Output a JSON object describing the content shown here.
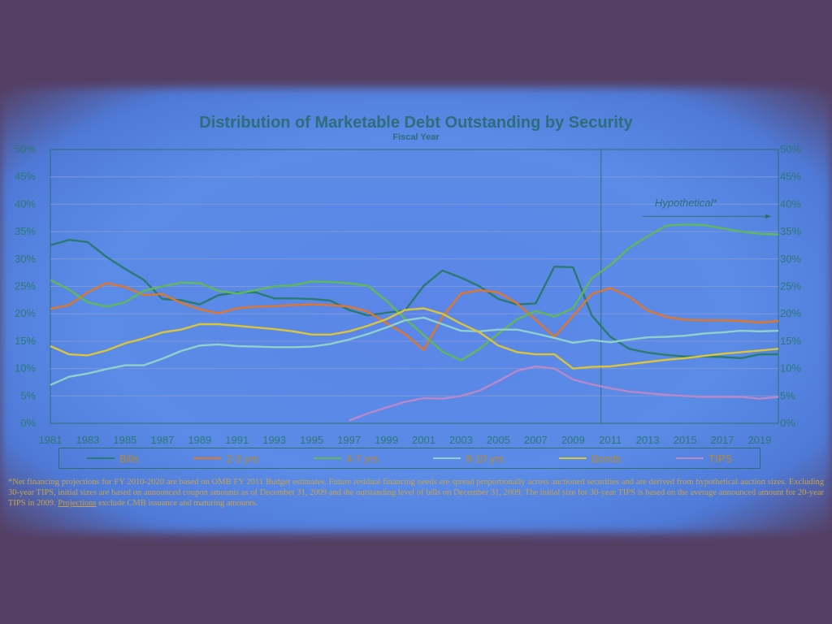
{
  "chart_data": {
    "type": "line",
    "title": "Distribution of Marketable Debt Outstanding by Security",
    "subtitle": "Fiscal Year",
    "annotation": "Hypothetical*",
    "ylim": [
      0,
      50
    ],
    "yticks": [
      "0%",
      "5%",
      "10%",
      "15%",
      "20%",
      "25%",
      "30%",
      "35%",
      "40%",
      "45%",
      "50%"
    ],
    "xlim": [
      1981,
      2020
    ],
    "xticks": [
      "1981",
      "1983",
      "1985",
      "1987",
      "1989",
      "1991",
      "1993",
      "1995",
      "1997",
      "1999",
      "2001",
      "2003",
      "2005",
      "2007",
      "2009",
      "2011",
      "2013",
      "2015",
      "2017",
      "2019"
    ],
    "projection_start": 2010,
    "grid": true,
    "legend_position": "bottom",
    "x": [
      1981,
      1982,
      1983,
      1984,
      1985,
      1986,
      1987,
      1988,
      1989,
      1990,
      1991,
      1992,
      1993,
      1994,
      1995,
      1996,
      1997,
      1998,
      1999,
      2000,
      2001,
      2002,
      2003,
      2004,
      2005,
      2006,
      2007,
      2008,
      2009,
      2010,
      2011,
      2012,
      2013,
      2014,
      2015,
      2016,
      2017,
      2018,
      2019,
      2020
    ],
    "series": [
      {
        "name": "Bills",
        "color": "#2a7a72",
        "values": [
          32.5,
          33.5,
          33.1,
          30.4,
          28.2,
          26.2,
          22.7,
          22.5,
          21.7,
          23.4,
          23.9,
          23.9,
          22.8,
          22.8,
          22.7,
          22.4,
          20.7,
          19.7,
          20.2,
          20.6,
          25.1,
          27.9,
          26.6,
          25.0,
          22.7,
          21.7,
          21.9,
          28.6,
          28.5,
          19.7,
          15.8,
          13.6,
          12.9,
          12.5,
          12.2,
          12.2,
          12.1,
          11.9,
          12.6,
          12.6
        ]
      },
      {
        "name": "2-3 yrs",
        "color": "#e0762a",
        "values": [
          20.9,
          21.6,
          23.9,
          25.6,
          24.9,
          23.4,
          23.6,
          22.0,
          20.8,
          20.1,
          21.0,
          21.3,
          21.4,
          21.6,
          21.7,
          21.6,
          21.3,
          20.4,
          18.3,
          16.3,
          13.4,
          19.4,
          23.7,
          24.3,
          23.9,
          21.9,
          18.9,
          15.8,
          19.6,
          23.6,
          24.7,
          23.1,
          20.6,
          19.4,
          18.9,
          18.8,
          18.8,
          18.7,
          18.4,
          18.7
        ]
      },
      {
        "name": "4-7 yrs",
        "color": "#5fb85a",
        "values": [
          26.2,
          24.4,
          22.1,
          21.3,
          22.1,
          24.2,
          25.0,
          25.7,
          25.6,
          24.2,
          23.7,
          24.3,
          25.0,
          25.2,
          25.9,
          25.8,
          25.6,
          25.1,
          22.4,
          19.1,
          16.1,
          13.1,
          11.5,
          13.6,
          16.4,
          19.0,
          20.5,
          19.5,
          21.0,
          26.5,
          28.9,
          32.0,
          34.2,
          36.1,
          36.3,
          36.2,
          35.6,
          35.0,
          34.6,
          34.5
        ]
      },
      {
        "name": "8-10 yrs",
        "color": "#8fd0ca",
        "values": [
          7.0,
          8.5,
          9.1,
          9.9,
          10.6,
          10.6,
          11.8,
          13.2,
          14.2,
          14.4,
          14.1,
          14.0,
          13.9,
          13.9,
          14.0,
          14.5,
          15.3,
          16.3,
          17.5,
          18.8,
          19.3,
          18.1,
          16.9,
          16.8,
          17.1,
          17.1,
          16.4,
          15.6,
          14.7,
          15.2,
          14.8,
          15.3,
          15.7,
          15.8,
          16.0,
          16.4,
          16.6,
          16.9,
          16.8,
          16.9
        ]
      },
      {
        "name": "Bonds",
        "color": "#d9c43a",
        "values": [
          14.1,
          12.6,
          12.4,
          13.3,
          14.6,
          15.5,
          16.6,
          17.1,
          18.1,
          18.1,
          17.8,
          17.5,
          17.2,
          16.8,
          16.2,
          16.2,
          16.8,
          17.8,
          19.0,
          20.7,
          21.0,
          20.0,
          18.2,
          16.6,
          14.2,
          13.0,
          12.6,
          12.6,
          10.0,
          10.3,
          10.4,
          10.8,
          11.2,
          11.6,
          11.9,
          12.3,
          12.7,
          13.0,
          13.3,
          13.6
        ]
      },
      {
        "name": "TIPS",
        "color": "#b888c8",
        "values": [
          null,
          null,
          null,
          null,
          null,
          null,
          null,
          null,
          null,
          null,
          null,
          null,
          null,
          null,
          null,
          null,
          0.5,
          1.8,
          2.9,
          3.9,
          4.6,
          4.5,
          5.0,
          6.0,
          7.7,
          9.6,
          10.4,
          10.0,
          8.0,
          7.1,
          6.4,
          5.8,
          5.5,
          5.2,
          5.0,
          4.8,
          4.8,
          4.8,
          4.5,
          4.8
        ]
      }
    ]
  },
  "footnote": {
    "text_before": "*Net financing projections for FY 2010-2020 are based on OMB FY 2011 Budget estimates. Future residual financing needs are spread proportionally across auctioned securities and are derived from hypothetical auction sizes. Excluding 30-year TIPS, initial sizes are based on announced coupon amounts as of December 31, 2009 and the outstanding level of bills on December 31, 2009. The initial size for 30-year TIPS is based on the average announced amount for 20-year TIPS in 2009. ",
    "underlined": "Projections",
    "text_after": " exclude CMB issuance and maturing amounts."
  }
}
